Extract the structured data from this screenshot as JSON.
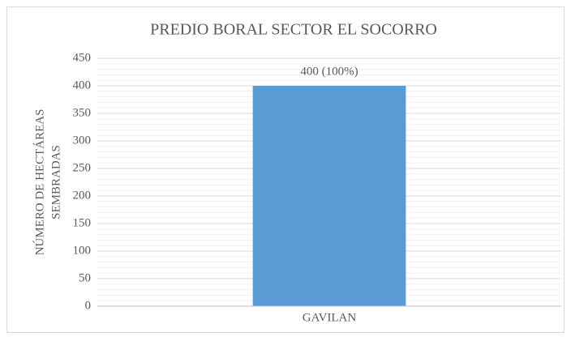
{
  "chart_data": {
    "type": "bar",
    "title": "PREDIO BORAL SECTOR EL SOCORRO",
    "y_label": [
      "NÚMERO DE HECTÁREAS",
      "SEMBRADAS"
    ],
    "categories": [
      "GAVILAN"
    ],
    "values": [
      400
    ],
    "value_labels": [
      "400 (100%)"
    ],
    "color": "#5b9bd5",
    "ylim": [
      0,
      450
    ],
    "yticks": [
      0,
      50,
      100,
      150,
      200,
      250,
      300,
      350,
      400,
      450
    ],
    "grid": true,
    "minor_grid": true
  }
}
